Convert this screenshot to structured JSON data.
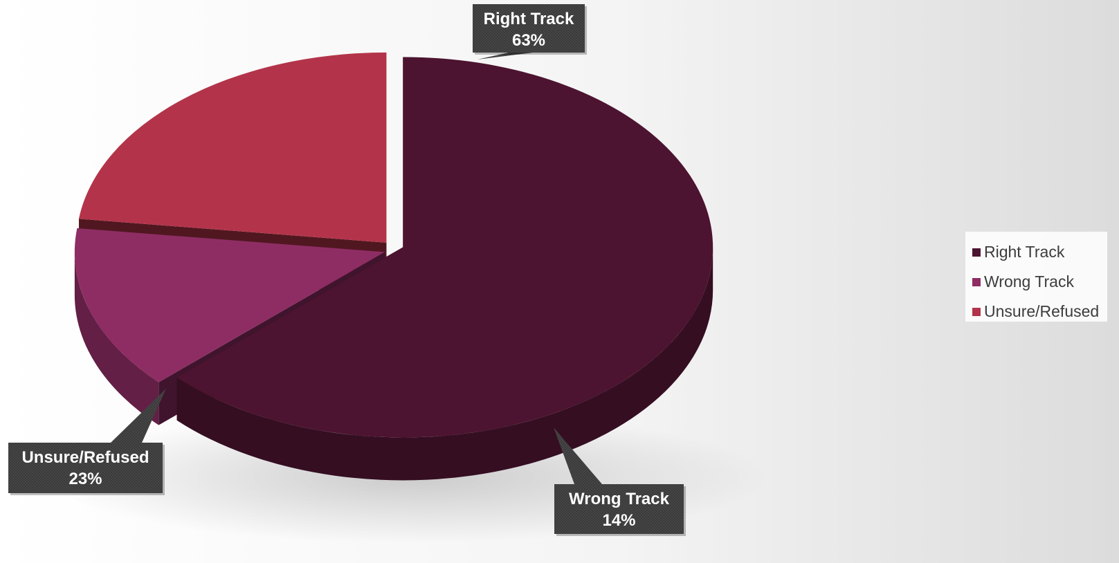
{
  "chart_data": {
    "type": "pie",
    "title": "",
    "categories": [
      "Right Track",
      "Wrong Track",
      "Unsure/Refused"
    ],
    "values": [
      63,
      14,
      23
    ],
    "value_labels": [
      "63%",
      "14%",
      "23%"
    ],
    "colors": [
      "#4C1430",
      "#8E2D63",
      "#B3344A"
    ],
    "exploded": true,
    "three_d": true,
    "legend_position": "right"
  },
  "legend": {
    "items": [
      {
        "label": "Right Track",
        "color": "#4C1430"
      },
      {
        "label": "Wrong Track",
        "color": "#8E2D63"
      },
      {
        "label": "Unsure/Refused",
        "color": "#B3344A"
      }
    ]
  },
  "callouts": [
    {
      "name": "Right Track",
      "value": "63%"
    },
    {
      "name": "Wrong Track",
      "value": "14%"
    },
    {
      "name": "Unsure/Refused",
      "value": "23%"
    }
  ]
}
